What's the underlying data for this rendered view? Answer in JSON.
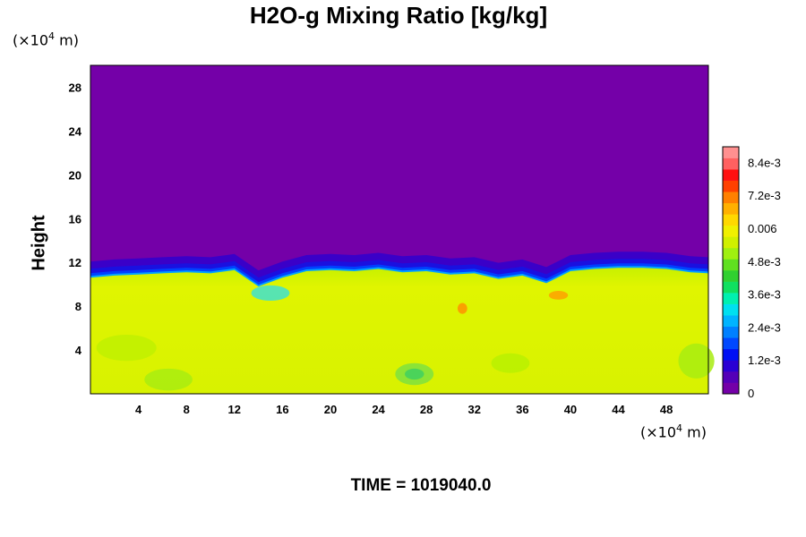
{
  "chart_data": {
    "type": "heatmap",
    "title": "H2O-g Mixing Ratio [kg/kg]",
    "ylabel": "Height",
    "x_unit_label": "(×10",
    "x_unit_exp": "4",
    "x_unit_suffix": " m)",
    "y_unit_label": "(×10",
    "y_unit_exp": "4",
    "y_unit_suffix": " m)",
    "footer": "TIME = 1019040.0",
    "xlim": [
      0,
      51.5
    ],
    "ylim": [
      0,
      30
    ],
    "x_ticks": [
      4,
      8,
      12,
      16,
      20,
      24,
      28,
      32,
      36,
      40,
      44,
      48
    ],
    "y_ticks": [
      4,
      8,
      12,
      16,
      20,
      24,
      28
    ],
    "colorbar": {
      "min": 0,
      "max": 0.009,
      "tick_values": [
        0,
        0.0012,
        0.0024,
        0.0036,
        0.0048,
        0.006,
        0.0072,
        0.0084
      ],
      "tick_labels": [
        "0",
        "1.2e-3",
        "2.4e-3",
        "3.6e-3",
        "4.8e-3",
        "0.006",
        "7.2e-3",
        "8.4e-3"
      ],
      "colors": [
        "#7400a8",
        "#5400b8",
        "#2a00d4",
        "#0010f4",
        "#0048ff",
        "#0080ff",
        "#00b4ff",
        "#00e0f0",
        "#00f0b0",
        "#10e060",
        "#30d030",
        "#60e020",
        "#a0f010",
        "#d0f000",
        "#f0f000",
        "#ffd800",
        "#ffb000",
        "#ff8000",
        "#ff4000",
        "#ff1010",
        "#ff6060",
        "#ff9090"
      ]
    },
    "field_description_values": {
      "upper_layer_value": 0,
      "lower_layer_value": 0.0062,
      "interface_height": [
        [
          0,
          10.6
        ],
        [
          2,
          10.8
        ],
        [
          4,
          10.9
        ],
        [
          6,
          11.0
        ],
        [
          8,
          11.1
        ],
        [
          10,
          11.0
        ],
        [
          12,
          11.3
        ],
        [
          14,
          9.8
        ],
        [
          16,
          10.6
        ],
        [
          18,
          11.2
        ],
        [
          20,
          11.3
        ],
        [
          22,
          11.2
        ],
        [
          24,
          11.4
        ],
        [
          26,
          11.1
        ],
        [
          28,
          11.2
        ],
        [
          30,
          10.9
        ],
        [
          32,
          11.0
        ],
        [
          34,
          10.5
        ],
        [
          36,
          10.8
        ],
        [
          38,
          10.1
        ],
        [
          40,
          11.2
        ],
        [
          42,
          11.4
        ],
        [
          44,
          11.5
        ],
        [
          46,
          11.5
        ],
        [
          48,
          11.4
        ],
        [
          50,
          11.1
        ],
        [
          51.5,
          11.0
        ]
      ]
    }
  }
}
